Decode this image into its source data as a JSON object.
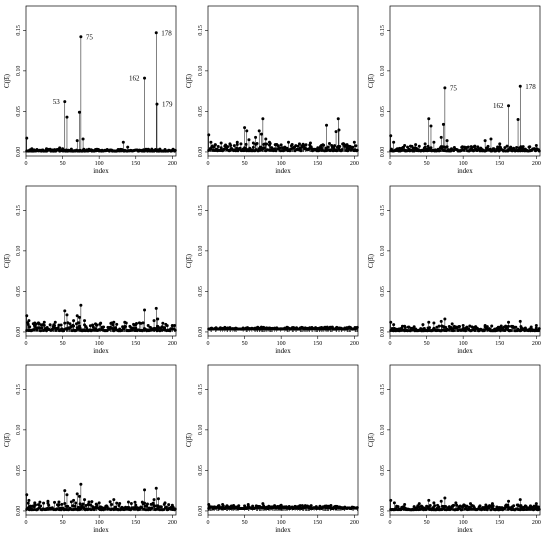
{
  "figure": {
    "columns": 3,
    "rows": 3
  },
  "chart_data": [
    {
      "type": "scatter",
      "style": "needle",
      "xlabel": "index",
      "ylabel": "C(β̂ᵢ)",
      "xlim": [
        0,
        205
      ],
      "ylim": [
        -0.005,
        0.18
      ],
      "xticks": [
        "0",
        "50",
        "100",
        "150",
        "200"
      ],
      "yticks": [
        "0.00",
        "0.05",
        "0.10",
        "0.15"
      ],
      "background": {
        "count": 204,
        "base": 0.001,
        "amplitude": 0.0025,
        "seed": 11
      },
      "points": [
        {
          "x": 1,
          "y": 0.017
        },
        {
          "x": 8,
          "y": 0.004
        },
        {
          "x": 15,
          "y": 0.003
        },
        {
          "x": 28,
          "y": 0.004
        },
        {
          "x": 46,
          "y": 0.005
        },
        {
          "x": 50,
          "y": 0.004
        },
        {
          "x": 53,
          "y": 0.062
        },
        {
          "x": 56,
          "y": 0.043
        },
        {
          "x": 70,
          "y": 0.014
        },
        {
          "x": 73,
          "y": 0.049
        },
        {
          "x": 75,
          "y": 0.142
        },
        {
          "x": 78,
          "y": 0.016
        },
        {
          "x": 133,
          "y": 0.012
        },
        {
          "x": 139,
          "y": 0.006
        },
        {
          "x": 162,
          "y": 0.091
        },
        {
          "x": 178,
          "y": 0.147
        },
        {
          "x": 179,
          "y": 0.059
        },
        {
          "x": 190,
          "y": 0.003
        }
      ],
      "annotations": [
        {
          "x": 53,
          "y": 0.062,
          "text": "53",
          "side": "left"
        },
        {
          "x": 75,
          "y": 0.142,
          "text": "75",
          "side": "right"
        },
        {
          "x": 162,
          "y": 0.091,
          "text": "162",
          "side": "left"
        },
        {
          "x": 178,
          "y": 0.147,
          "text": "178",
          "side": "right"
        },
        {
          "x": 179,
          "y": 0.059,
          "text": "179",
          "side": "right"
        }
      ]
    },
    {
      "type": "scatter",
      "style": "needle",
      "xlabel": "index",
      "ylabel": "C(β̂ᵢ)",
      "xlim": [
        0,
        205
      ],
      "ylim": [
        -0.005,
        0.18
      ],
      "xticks": [
        "0",
        "50",
        "100",
        "150",
        "200"
      ],
      "yticks": [
        "0.00",
        "0.05",
        "0.10",
        "0.15"
      ],
      "background": {
        "count": 204,
        "base": 0.0015,
        "amplitude": 0.009,
        "seed": 23
      },
      "points": [
        {
          "x": 1,
          "y": 0.021
        },
        {
          "x": 4,
          "y": 0.012
        },
        {
          "x": 10,
          "y": 0.009
        },
        {
          "x": 18,
          "y": 0.011
        },
        {
          "x": 30,
          "y": 0.01
        },
        {
          "x": 40,
          "y": 0.012
        },
        {
          "x": 50,
          "y": 0.03
        },
        {
          "x": 53,
          "y": 0.026
        },
        {
          "x": 56,
          "y": 0.015
        },
        {
          "x": 62,
          "y": 0.011
        },
        {
          "x": 65,
          "y": 0.018
        },
        {
          "x": 70,
          "y": 0.026
        },
        {
          "x": 73,
          "y": 0.022
        },
        {
          "x": 75,
          "y": 0.041
        },
        {
          "x": 79,
          "y": 0.016
        },
        {
          "x": 84,
          "y": 0.012
        },
        {
          "x": 92,
          "y": 0.009
        },
        {
          "x": 110,
          "y": 0.012
        },
        {
          "x": 125,
          "y": 0.01
        },
        {
          "x": 140,
          "y": 0.011
        },
        {
          "x": 155,
          "y": 0.008
        },
        {
          "x": 162,
          "y": 0.033
        },
        {
          "x": 175,
          "y": 0.025
        },
        {
          "x": 178,
          "y": 0.041
        },
        {
          "x": 179,
          "y": 0.027
        },
        {
          "x": 190,
          "y": 0.009
        },
        {
          "x": 200,
          "y": 0.012
        }
      ],
      "annotations": []
    },
    {
      "type": "scatter",
      "style": "needle",
      "xlabel": "index",
      "ylabel": "C(β̂ᵢ)",
      "xlim": [
        0,
        205
      ],
      "ylim": [
        -0.005,
        0.18
      ],
      "xticks": [
        "0",
        "50",
        "100",
        "150",
        "200"
      ],
      "yticks": [
        "0.00",
        "0.05",
        "0.10",
        "0.15"
      ],
      "background": {
        "count": 204,
        "base": 0.0012,
        "amplitude": 0.006,
        "seed": 37
      },
      "points": [
        {
          "x": 1,
          "y": 0.02
        },
        {
          "x": 5,
          "y": 0.012
        },
        {
          "x": 20,
          "y": 0.008
        },
        {
          "x": 35,
          "y": 0.009
        },
        {
          "x": 48,
          "y": 0.01
        },
        {
          "x": 53,
          "y": 0.041
        },
        {
          "x": 56,
          "y": 0.032
        },
        {
          "x": 60,
          "y": 0.012
        },
        {
          "x": 70,
          "y": 0.018
        },
        {
          "x": 73,
          "y": 0.034
        },
        {
          "x": 75,
          "y": 0.079
        },
        {
          "x": 78,
          "y": 0.014
        },
        {
          "x": 130,
          "y": 0.014
        },
        {
          "x": 138,
          "y": 0.016
        },
        {
          "x": 150,
          "y": 0.01
        },
        {
          "x": 162,
          "y": 0.057
        },
        {
          "x": 175,
          "y": 0.04
        },
        {
          "x": 178,
          "y": 0.081
        },
        {
          "x": 190,
          "y": 0.006
        },
        {
          "x": 200,
          "y": 0.008
        }
      ],
      "annotations": [
        {
          "x": 75,
          "y": 0.079,
          "text": "75",
          "side": "right"
        },
        {
          "x": 162,
          "y": 0.057,
          "text": "162",
          "side": "left"
        },
        {
          "x": 178,
          "y": 0.081,
          "text": "178",
          "side": "right"
        }
      ]
    },
    {
      "type": "scatter",
      "style": "needle",
      "xlabel": "index",
      "ylabel": "C(β̂ᵢ)",
      "xlim": [
        0,
        205
      ],
      "ylim": [
        -0.005,
        0.18
      ],
      "xticks": [
        "0",
        "50",
        "100",
        "150",
        "200"
      ],
      "yticks": [
        "0.00",
        "0.05",
        "0.10",
        "0.15"
      ],
      "background": {
        "count": 204,
        "base": 0.0015,
        "amplitude": 0.01,
        "seed": 41
      },
      "points": [
        {
          "x": 1,
          "y": 0.02
        },
        {
          "x": 4,
          "y": 0.014
        },
        {
          "x": 12,
          "y": 0.011
        },
        {
          "x": 25,
          "y": 0.012
        },
        {
          "x": 40,
          "y": 0.012
        },
        {
          "x": 53,
          "y": 0.026
        },
        {
          "x": 56,
          "y": 0.021
        },
        {
          "x": 65,
          "y": 0.014
        },
        {
          "x": 70,
          "y": 0.02
        },
        {
          "x": 73,
          "y": 0.018
        },
        {
          "x": 75,
          "y": 0.033
        },
        {
          "x": 80,
          "y": 0.014
        },
        {
          "x": 95,
          "y": 0.01
        },
        {
          "x": 120,
          "y": 0.012
        },
        {
          "x": 135,
          "y": 0.012
        },
        {
          "x": 150,
          "y": 0.009
        },
        {
          "x": 162,
          "y": 0.027
        },
        {
          "x": 175,
          "y": 0.014
        },
        {
          "x": 178,
          "y": 0.029
        },
        {
          "x": 180,
          "y": 0.016
        },
        {
          "x": 200,
          "y": 0.008
        }
      ],
      "annotations": []
    },
    {
      "type": "scatter",
      "style": "needle",
      "xlabel": "index",
      "ylabel": "C(β̂ᵢ)",
      "xlim": [
        0,
        205
      ],
      "ylim": [
        -0.005,
        0.18
      ],
      "xticks": [
        "0",
        "50",
        "100",
        "150",
        "200"
      ],
      "yticks": [
        "0.00",
        "0.05",
        "0.10",
        "0.15"
      ],
      "background": {
        "count": 204,
        "base": 0.0035,
        "amplitude": 0.0025,
        "seed": 53
      },
      "points": [],
      "annotations": []
    },
    {
      "type": "scatter",
      "style": "needle",
      "xlabel": "index",
      "ylabel": "C(β̂ᵢ)",
      "xlim": [
        0,
        205
      ],
      "ylim": [
        -0.005,
        0.18
      ],
      "xticks": [
        "0",
        "50",
        "100",
        "150",
        "200"
      ],
      "yticks": [
        "0.00",
        "0.05",
        "0.10",
        "0.15"
      ],
      "background": {
        "count": 204,
        "base": 0.0015,
        "amplitude": 0.006,
        "seed": 67
      },
      "points": [
        {
          "x": 1,
          "y": 0.012
        },
        {
          "x": 5,
          "y": 0.009
        },
        {
          "x": 20,
          "y": 0.007
        },
        {
          "x": 45,
          "y": 0.009
        },
        {
          "x": 53,
          "y": 0.012
        },
        {
          "x": 60,
          "y": 0.011
        },
        {
          "x": 70,
          "y": 0.013
        },
        {
          "x": 75,
          "y": 0.016
        },
        {
          "x": 85,
          "y": 0.01
        },
        {
          "x": 100,
          "y": 0.008
        },
        {
          "x": 130,
          "y": 0.008
        },
        {
          "x": 162,
          "y": 0.012
        },
        {
          "x": 178,
          "y": 0.013
        },
        {
          "x": 200,
          "y": 0.008
        }
      ],
      "annotations": []
    },
    {
      "type": "scatter",
      "style": "needle",
      "xlabel": "index",
      "ylabel": "C(β̂ᵢ)",
      "xlim": [
        0,
        205
      ],
      "ylim": [
        -0.005,
        0.18
      ],
      "xticks": [
        "0",
        "50",
        "100",
        "150",
        "200"
      ],
      "yticks": [
        "0.00",
        "0.05",
        "0.10",
        "0.15"
      ],
      "background": {
        "count": 204,
        "base": 0.0015,
        "amplitude": 0.01,
        "seed": 79
      },
      "points": [
        {
          "x": 1,
          "y": 0.02
        },
        {
          "x": 4,
          "y": 0.013
        },
        {
          "x": 12,
          "y": 0.01
        },
        {
          "x": 30,
          "y": 0.012
        },
        {
          "x": 45,
          "y": 0.011
        },
        {
          "x": 53,
          "y": 0.025
        },
        {
          "x": 56,
          "y": 0.02
        },
        {
          "x": 65,
          "y": 0.013
        },
        {
          "x": 70,
          "y": 0.021
        },
        {
          "x": 73,
          "y": 0.018
        },
        {
          "x": 75,
          "y": 0.033
        },
        {
          "x": 80,
          "y": 0.014
        },
        {
          "x": 100,
          "y": 0.01
        },
        {
          "x": 120,
          "y": 0.014
        },
        {
          "x": 140,
          "y": 0.011
        },
        {
          "x": 162,
          "y": 0.026
        },
        {
          "x": 175,
          "y": 0.014
        },
        {
          "x": 178,
          "y": 0.028
        },
        {
          "x": 181,
          "y": 0.015
        },
        {
          "x": 200,
          "y": 0.007
        }
      ],
      "annotations": []
    },
    {
      "type": "scatter",
      "style": "needle",
      "xlabel": "index",
      "ylabel": "C(β̂ᵢ)",
      "xlim": [
        0,
        205
      ],
      "ylim": [
        -0.005,
        0.18
      ],
      "xticks": [
        "0",
        "50",
        "100",
        "150",
        "200"
      ],
      "yticks": [
        "0.00",
        "0.05",
        "0.10",
        "0.15"
      ],
      "background": {
        "count": 204,
        "base": 0.003,
        "amplitude": 0.004,
        "seed": 83
      },
      "points": [
        {
          "x": 1,
          "y": 0.008
        },
        {
          "x": 20,
          "y": 0.008
        },
        {
          "x": 55,
          "y": 0.008
        },
        {
          "x": 75,
          "y": 0.009
        },
        {
          "x": 100,
          "y": 0.007
        }
      ],
      "annotations": []
    },
    {
      "type": "scatter",
      "style": "needle",
      "xlabel": "index",
      "ylabel": "C(β̂ᵢ)",
      "xlim": [
        0,
        205
      ],
      "ylim": [
        -0.005,
        0.18
      ],
      "xticks": [
        "0",
        "50",
        "100",
        "150",
        "200"
      ],
      "yticks": [
        "0.00",
        "0.05",
        "0.10",
        "0.15"
      ],
      "background": {
        "count": 204,
        "base": 0.0015,
        "amplitude": 0.006,
        "seed": 97
      },
      "points": [
        {
          "x": 1,
          "y": 0.013
        },
        {
          "x": 6,
          "y": 0.01
        },
        {
          "x": 20,
          "y": 0.008
        },
        {
          "x": 40,
          "y": 0.009
        },
        {
          "x": 53,
          "y": 0.013
        },
        {
          "x": 60,
          "y": 0.01
        },
        {
          "x": 70,
          "y": 0.012
        },
        {
          "x": 75,
          "y": 0.016
        },
        {
          "x": 90,
          "y": 0.01
        },
        {
          "x": 110,
          "y": 0.009
        },
        {
          "x": 140,
          "y": 0.009
        },
        {
          "x": 162,
          "y": 0.012
        },
        {
          "x": 178,
          "y": 0.014
        },
        {
          "x": 200,
          "y": 0.009
        }
      ],
      "annotations": []
    }
  ]
}
